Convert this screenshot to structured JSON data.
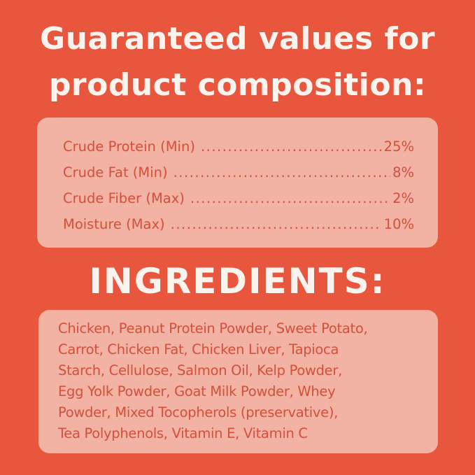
{
  "heading": {
    "line1": "Guaranteed values for",
    "line2": "product composition:"
  },
  "composition": [
    {
      "label": "Crude Protein (Min)",
      "value": "25%"
    },
    {
      "label": "Crude Fat (Min)",
      "value": "8%"
    },
    {
      "label": "Crude Fiber (Max)",
      "value": "2%"
    },
    {
      "label": "Moisture (Max)",
      "value": "10%"
    }
  ],
  "ingredients_title": "INGREDIENTS:",
  "ingredients_lines": [
    "Chicken, Peanut Protein Powder, Sweet Potato,",
    "Carrot, Chicken Fat, Chicken Liver, Tapioca",
    "Starch, Cellulose, Salmon Oil, Kelp Powder,",
    "Egg Yolk Powder, Goat Milk Powder, Whey",
    "Powder, Mixed Tocopherols (preservative),",
    "Tea Polyphenols, Vitamin E, Vitamin C"
  ],
  "colors": {
    "background": "#e8573d",
    "panel": "#f2b2a4",
    "text": "#d3503a",
    "heading": "#fbf3ee"
  }
}
